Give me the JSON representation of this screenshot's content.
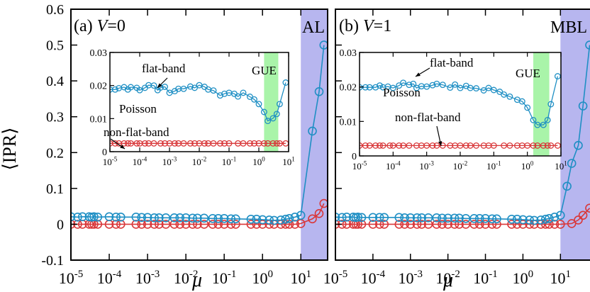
{
  "figure": {
    "ylabel": "⟨IPR⟩",
    "xlabel": "μ"
  },
  "colors": {
    "blue_series": "#1f8fc4",
    "red_series": "#d9383a",
    "blue_shade": "#b7b6ef",
    "green_shade": "#a9f4a9"
  },
  "chart_data": [
    {
      "type": "line",
      "panel": "a",
      "panel_label": "(a)",
      "variable": "V",
      "variable_value": "=0",
      "region_label": "AL",
      "xscale": "log",
      "xlim": [
        1e-05,
        50
      ],
      "ylim": [
        -0.1,
        0.6
      ],
      "x_ticks": [
        {
          "base": "10",
          "exp": "-5"
        },
        {
          "base": "10",
          "exp": "-4"
        },
        {
          "base": "10",
          "exp": "-3"
        },
        {
          "base": "10",
          "exp": "-2"
        },
        {
          "base": "10",
          "exp": "-1"
        },
        {
          "base": "10",
          "exp": "0"
        },
        {
          "base": "10",
          "exp": "1"
        }
      ],
      "y_ticks": [
        "-0.1",
        "0",
        "0.1",
        "0.2",
        "0.3",
        "0.4",
        "0.5",
        "0.6"
      ],
      "y_tick_values": [
        -0.1,
        0,
        0.1,
        0.2,
        0.3,
        0.4,
        0.5,
        0.6
      ],
      "shaded_region": {
        "x": [
          10,
          50
        ]
      },
      "series": [
        {
          "x": [
            1e-05,
            1.5e-05,
            2e-05,
            3e-05,
            3.5e-05,
            4e-05,
            5e-05,
            0.0001,
            0.00015,
            0.0002,
            0.0005,
            0.0007,
            0.001,
            0.0015,
            0.002,
            0.003,
            0.005,
            0.007,
            0.01,
            0.015,
            0.02,
            0.03,
            0.05,
            0.07,
            0.1,
            0.15,
            0.2,
            0.5,
            0.7,
            1,
            1.5,
            2,
            3,
            4,
            5,
            7,
            10,
            20,
            30,
            40
          ],
          "values": [
            0.021,
            0.02,
            0.021,
            0.021,
            0.02,
            0.021,
            0.02,
            0.021,
            0.02,
            0.02,
            0.02,
            0.019,
            0.019,
            0.018,
            0.018,
            0.018,
            0.018,
            0.018,
            0.018,
            0.017,
            0.017,
            0.017,
            0.016,
            0.016,
            0.016,
            0.015,
            0.015,
            0.014,
            0.014,
            0.013,
            0.012,
            0.011,
            0.012,
            0.014,
            0.016,
            0.02,
            0.025,
            0.26,
            0.37,
            0.5
          ]
        },
        {
          "x": [
            1e-05,
            1.5e-05,
            2e-05,
            3e-05,
            3.5e-05,
            4e-05,
            5e-05,
            0.0001,
            0.00015,
            0.0002,
            0.0005,
            0.0007,
            0.001,
            0.0015,
            0.002,
            0.003,
            0.005,
            0.007,
            0.01,
            0.015,
            0.02,
            0.03,
            0.05,
            0.07,
            0.1,
            0.15,
            0.2,
            0.5,
            0.7,
            1,
            1.5,
            2,
            3,
            4,
            5,
            7,
            10,
            20,
            30,
            40
          ],
          "values": [
            0,
            0,
            0,
            0,
            0,
            0,
            0,
            0,
            0,
            0,
            0,
            0,
            0,
            0,
            0,
            0,
            0,
            0,
            0,
            0,
            0,
            0,
            0,
            0,
            0,
            0,
            0,
            0,
            0,
            0,
            0,
            0,
            0,
            0,
            0,
            0,
            0.002,
            0.015,
            0.03,
            0.058
          ]
        }
      ],
      "inset": {
        "xscale": "log",
        "xlim": [
          1e-05,
          10
        ],
        "ylim": [
          0,
          0.03
        ],
        "y_ticks": [
          "0",
          "0.01",
          "0.02",
          "0.03"
        ],
        "y_tick_values": [
          0,
          0.01,
          0.02,
          0.03
        ],
        "x_ticks": [
          {
            "base": "10",
            "exp": "-5"
          },
          {
            "base": "10",
            "exp": "-4"
          },
          {
            "base": "10",
            "exp": "-3"
          },
          {
            "base": "10",
            "exp": "-2"
          },
          {
            "base": "10",
            "exp": "-1"
          },
          {
            "base": "10",
            "exp": "0"
          },
          {
            "base": "10",
            "exp": "1"
          }
        ],
        "shaded_region": {
          "x": [
            1.5,
            4.5
          ]
        },
        "labels": {
          "flat": "flat-band",
          "poisson": "Poisson",
          "gue": "GUE",
          "nonflat": "non-flat-band"
        },
        "series": [
          {
            "x": [
              1e-05,
              1.5e-05,
              2e-05,
              3e-05,
              4e-05,
              5e-05,
              8e-05,
              0.0001,
              0.00015,
              0.0002,
              0.0003,
              0.0004,
              0.0005,
              0.0007,
              0.001,
              0.0015,
              0.002,
              0.003,
              0.005,
              0.007,
              0.01,
              0.015,
              0.02,
              0.03,
              0.05,
              0.07,
              0.1,
              0.15,
              0.2,
              0.3,
              0.5,
              0.7,
              1,
              1.5,
              2,
              3,
              4,
              5,
              8
            ],
            "values": [
              0.0188,
              0.0188,
              0.0192,
              0.0195,
              0.0188,
              0.0195,
              0.0193,
              0.0186,
              0.0193,
              0.0201,
              0.02,
              0.0186,
              0.0194,
              0.0196,
              0.0178,
              0.0183,
              0.019,
              0.019,
              0.0197,
              0.0193,
              0.0201,
              0.0196,
              0.0188,
              0.0185,
              0.017,
              0.0175,
              0.0178,
              0.0175,
              0.0167,
              0.0178,
              0.0166,
              0.0158,
              0.0144,
              0.012,
              0.0093,
              0.0101,
              0.0114,
              0.0144,
              0.0209
            ]
          },
          {
            "x": [
              1e-05,
              1.5e-05,
              2e-05,
              3e-05,
              4e-05,
              5e-05,
              8e-05,
              0.0001,
              0.00015,
              0.0002,
              0.0003,
              0.0005,
              0.0007,
              0.001,
              0.0015,
              0.002,
              0.003,
              0.005,
              0.007,
              0.01,
              0.015,
              0.02,
              0.03,
              0.05,
              0.07,
              0.1,
              0.2,
              0.3,
              0.5,
              0.7,
              1,
              1.5,
              2,
              3,
              4,
              5,
              8
            ],
            "values": [
              0.0025,
              0.0025,
              0.0025,
              0.0025,
              0.0025,
              0.0025,
              0.0025,
              0.0025,
              0.0025,
              0.0025,
              0.0025,
              0.0025,
              0.0025,
              0.0025,
              0.0025,
              0.0025,
              0.0025,
              0.0025,
              0.0025,
              0.0025,
              0.0025,
              0.0025,
              0.0025,
              0.0025,
              0.0025,
              0.0025,
              0.0025,
              0.0025,
              0.0025,
              0.0025,
              0.0025,
              0.0025,
              0.0025,
              0.0025,
              0.0025,
              0.0025,
              0.0025
            ]
          }
        ]
      }
    },
    {
      "type": "line",
      "panel": "b",
      "panel_label": "(b)",
      "variable": "V",
      "variable_value": "=1",
      "region_label": "MBL",
      "xscale": "log",
      "xlim": [
        1e-05,
        70
      ],
      "ylim": [
        -0.1,
        0.6
      ],
      "x_ticks": [
        {
          "base": "10",
          "exp": "-5"
        },
        {
          "base": "10",
          "exp": "-4"
        },
        {
          "base": "10",
          "exp": "-3"
        },
        {
          "base": "10",
          "exp": "-2"
        },
        {
          "base": "10",
          "exp": "-1"
        },
        {
          "base": "10",
          "exp": "0"
        },
        {
          "base": "10",
          "exp": "1"
        }
      ],
      "shaded_region": {
        "x": [
          10,
          70
        ]
      },
      "series": [
        {
          "x": [
            1e-05,
            1.5e-05,
            2e-05,
            3e-05,
            3.5e-05,
            4e-05,
            5e-05,
            0.0001,
            0.00015,
            0.0002,
            0.0005,
            0.0007,
            0.001,
            0.0015,
            0.002,
            0.003,
            0.005,
            0.007,
            0.01,
            0.015,
            0.02,
            0.03,
            0.05,
            0.07,
            0.1,
            0.15,
            0.2,
            0.5,
            0.7,
            1,
            1.5,
            2,
            3,
            4,
            5,
            7,
            10,
            15,
            20,
            30,
            40,
            60
          ],
          "values": [
            0.02,
            0.019,
            0.02,
            0.02,
            0.019,
            0.02,
            0.019,
            0.019,
            0.019,
            0.019,
            0.019,
            0.018,
            0.018,
            0.018,
            0.018,
            0.018,
            0.018,
            0.017,
            0.017,
            0.017,
            0.017,
            0.016,
            0.016,
            0.016,
            0.016,
            0.015,
            0.015,
            0.014,
            0.014,
            0.013,
            0.012,
            0.011,
            0.012,
            0.014,
            0.016,
            0.02,
            0.025,
            0.106,
            0.17,
            0.22,
            0.33,
            0.5
          ]
        },
        {
          "x": [
            1e-05,
            1.5e-05,
            2e-05,
            3e-05,
            3.5e-05,
            4e-05,
            5e-05,
            0.0001,
            0.00015,
            0.0002,
            0.0005,
            0.0007,
            0.001,
            0.0015,
            0.002,
            0.003,
            0.005,
            0.007,
            0.01,
            0.015,
            0.02,
            0.03,
            0.05,
            0.07,
            0.1,
            0.15,
            0.2,
            0.5,
            0.7,
            1,
            1.5,
            2,
            3,
            4,
            5,
            7,
            10,
            20,
            30,
            40,
            60
          ],
          "values": [
            0,
            0,
            0,
            0,
            0,
            0,
            0,
            0,
            0,
            0,
            0,
            0,
            0,
            0,
            0,
            0,
            0,
            0,
            0,
            0,
            0,
            0,
            0,
            0,
            0,
            0,
            0,
            0,
            0,
            0,
            0,
            0,
            0,
            0,
            0,
            0,
            0,
            0.002,
            0.012,
            0.025,
            0.045
          ]
        }
      ],
      "inset": {
        "xscale": "log",
        "xlim": [
          1e-05,
          10
        ],
        "ylim": [
          0,
          0.03
        ],
        "y_ticks": [
          "0",
          "0.01",
          "0.02",
          "0.03"
        ],
        "y_tick_values": [
          0,
          0.01,
          0.02,
          0.03
        ],
        "x_ticks": [
          {
            "base": "10",
            "exp": "-5"
          },
          {
            "base": "10",
            "exp": "-4"
          },
          {
            "base": "10",
            "exp": "-3"
          },
          {
            "base": "10",
            "exp": "-2"
          },
          {
            "base": "10",
            "exp": "-1"
          },
          {
            "base": "10",
            "exp": "0"
          },
          {
            "base": "10",
            "exp": "1"
          }
        ],
        "shaded_region": {
          "x": [
            1.5,
            4.5
          ]
        },
        "labels": {
          "flat": "flat-band",
          "poisson": "Poisson",
          "gue": "GUE",
          "nonflat": "non-flat-band"
        },
        "series": [
          {
            "x": [
              1e-05,
              1.5e-05,
              2e-05,
              3e-05,
              4e-05,
              5e-05,
              7e-05,
              0.0001,
              0.00015,
              0.0002,
              0.0003,
              0.0004,
              0.0005,
              0.0007,
              0.001,
              0.0015,
              0.002,
              0.003,
              0.005,
              0.007,
              0.01,
              0.015,
              0.02,
              0.03,
              0.05,
              0.07,
              0.1,
              0.15,
              0.2,
              0.3,
              0.5,
              0.7,
              1,
              1.5,
              2,
              3,
              4,
              5,
              8
            ],
            "values": [
              0.0199,
              0.0199,
              0.0199,
              0.0199,
              0.0204,
              0.0199,
              0.0201,
              0.0197,
              0.0204,
              0.0212,
              0.0206,
              0.0209,
              0.0197,
              0.0202,
              0.0201,
              0.0205,
              0.0209,
              0.0206,
              0.0198,
              0.0207,
              0.0197,
              0.0203,
              0.0197,
              0.0196,
              0.019,
              0.0197,
              0.0191,
              0.0186,
              0.0178,
              0.0172,
              0.0163,
              0.0158,
              0.014,
              0.0104,
              0.009,
              0.009,
              0.0104,
              0.015,
              0.0231
            ]
          },
          {
            "x": [
              1e-05,
              1.5e-05,
              2e-05,
              3e-05,
              4e-05,
              5e-05,
              8e-05,
              0.0001,
              0.00015,
              0.0002,
              0.0003,
              0.0005,
              0.0007,
              0.001,
              0.0015,
              0.002,
              0.003,
              0.005,
              0.007,
              0.01,
              0.015,
              0.02,
              0.03,
              0.05,
              0.07,
              0.1,
              0.2,
              0.3,
              0.5,
              0.7,
              1,
              1.5,
              2,
              3,
              4,
              5,
              8
            ],
            "values": [
              0.003,
              0.003,
              0.003,
              0.003,
              0.003,
              0.003,
              0.003,
              0.003,
              0.003,
              0.003,
              0.003,
              0.003,
              0.003,
              0.003,
              0.003,
              0.003,
              0.003,
              0.003,
              0.003,
              0.003,
              0.003,
              0.003,
              0.003,
              0.003,
              0.003,
              0.003,
              0.003,
              0.003,
              0.003,
              0.003,
              0.003,
              0.003,
              0.003,
              0.003,
              0.003,
              0.003,
              0.003
            ]
          }
        ]
      }
    }
  ]
}
